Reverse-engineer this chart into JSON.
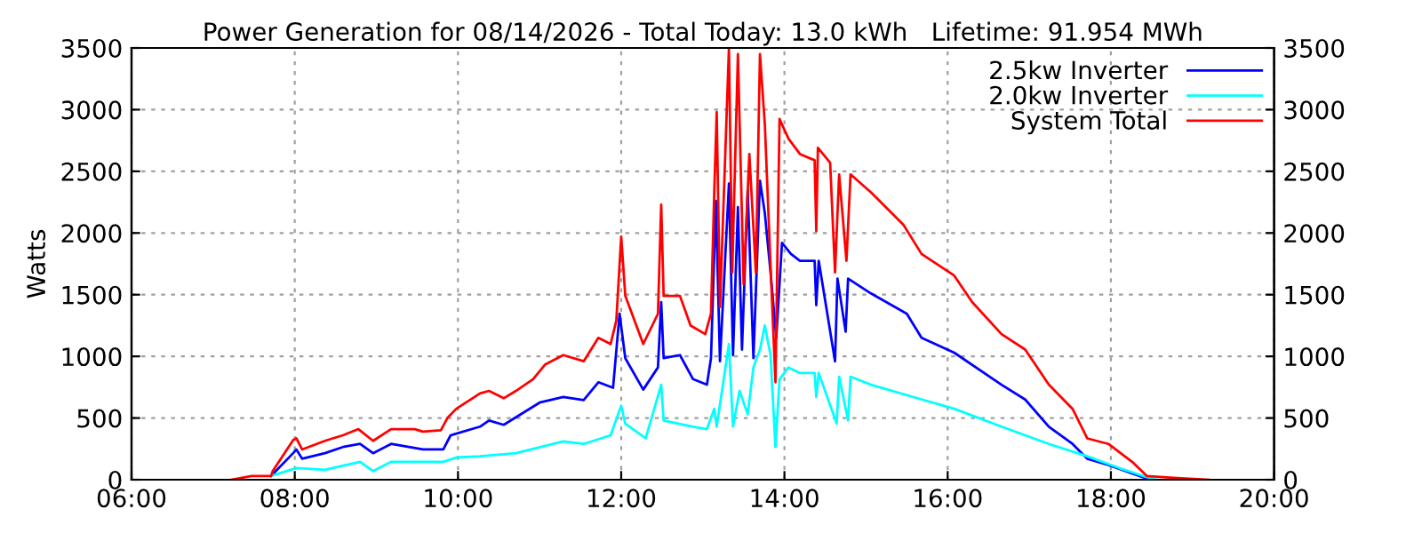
{
  "chart_data": {
    "type": "line",
    "title": "Power Generation for 08/14/2026 - Total Today: 13.0 kWh   Lifetime: 91.954 MWh",
    "ylabel": "Watts",
    "xlim": [
      6,
      20
    ],
    "xticks": [
      {
        "value": 6,
        "label": "06:00"
      },
      {
        "value": 8,
        "label": "08:00"
      },
      {
        "value": 10,
        "label": "10:00"
      },
      {
        "value": 12,
        "label": "12:00"
      },
      {
        "value": 14,
        "label": "14:00"
      },
      {
        "value": 16,
        "label": "16:00"
      },
      {
        "value": 18,
        "label": "18:00"
      },
      {
        "value": 20,
        "label": "20:00"
      }
    ],
    "ylim": [
      0,
      3500
    ],
    "yticks": [
      0,
      500,
      1000,
      1500,
      2000,
      2500,
      3000,
      3500
    ],
    "y2lim": [
      0,
      3500
    ],
    "y2ticks": [
      0,
      500,
      1000,
      1500,
      2000,
      2500,
      3000,
      3500
    ],
    "grid": true,
    "legend": "top right",
    "line_style": "solid",
    "marker": "none",
    "series": [
      {
        "name": "2.5kw Inverter",
        "color": "#0000ff",
        "x": [
          7.71,
          7.98,
          8.02,
          8.09,
          8.37,
          8.59,
          8.8,
          8.96,
          9.18,
          9.57,
          9.82,
          9.91,
          10.27,
          10.38,
          10.56,
          11.0,
          11.29,
          11.54,
          11.72,
          11.9,
          11.98,
          12.05,
          12.27,
          12.45,
          12.49,
          12.52,
          12.72,
          12.88,
          13.05,
          13.1,
          13.16,
          13.21,
          13.32,
          13.37,
          13.43,
          13.48,
          13.55,
          13.62,
          13.7,
          13.76,
          13.83,
          13.9,
          13.97,
          14.08,
          14.19,
          14.37,
          14.39,
          14.42,
          14.62,
          14.65,
          14.75,
          14.78,
          15.06,
          15.5,
          15.68,
          16.08,
          16.66,
          16.95,
          17.24,
          17.53,
          17.71,
          17.97,
          18.26,
          18.48
        ],
        "values": [
          30,
          215,
          245,
          170,
          215,
          265,
          290,
          215,
          290,
          245,
          245,
          360,
          430,
          480,
          445,
          625,
          670,
          645,
          790,
          745,
          1345,
          985,
          730,
          910,
          1440,
          985,
          1010,
          815,
          770,
          985,
          2260,
          960,
          2400,
          1010,
          2210,
          1055,
          2350,
          985,
          2425,
          2160,
          1680,
          1150,
          1920,
          1830,
          1775,
          1775,
          1415,
          1775,
          960,
          1630,
          1200,
          1630,
          1510,
          1345,
          1150,
          1030,
          770,
          650,
          430,
          290,
          170,
          120,
          50,
          0
        ]
      },
      {
        "name": "2.0kw Inverter",
        "color": "#00ffff",
        "x": [
          7.71,
          8.02,
          8.37,
          8.8,
          8.96,
          9.18,
          9.82,
          9.98,
          10.27,
          10.71,
          11.29,
          11.54,
          11.87,
          12.0,
          12.05,
          12.3,
          12.49,
          12.52,
          12.88,
          13.05,
          13.14,
          13.17,
          13.32,
          13.37,
          13.45,
          13.55,
          13.62,
          13.7,
          13.76,
          13.83,
          13.89,
          13.94,
          14.05,
          14.19,
          14.37,
          14.39,
          14.42,
          14.64,
          14.67,
          14.78,
          14.81,
          15.06,
          15.58,
          16.08,
          16.66,
          17.24,
          17.71,
          18.1,
          18.4,
          18.55
        ],
        "values": [
          30,
          95,
          80,
          145,
          70,
          145,
          145,
          180,
          190,
          215,
          310,
          290,
          360,
          600,
          455,
          335,
          770,
          480,
          430,
          410,
          575,
          430,
          1100,
          430,
          720,
          530,
          910,
          1055,
          1250,
          1010,
          265,
          815,
          910,
          865,
          865,
          670,
          865,
          455,
          835,
          480,
          835,
          770,
          670,
          575,
          430,
          290,
          190,
          95,
          30,
          0
        ]
      },
      {
        "name": "System Total",
        "color": "#ff0000",
        "x": [
          7.22,
          7.47,
          7.71,
          7.73,
          7.98,
          8.02,
          8.09,
          8.37,
          8.59,
          8.78,
          8.96,
          9.18,
          9.47,
          9.57,
          9.79,
          9.87,
          9.98,
          10.27,
          10.38,
          10.56,
          10.71,
          10.92,
          11.07,
          11.29,
          11.54,
          11.72,
          11.87,
          11.94,
          12.0,
          12.05,
          12.27,
          12.45,
          12.49,
          12.52,
          12.72,
          12.85,
          13.03,
          13.1,
          13.14,
          13.17,
          13.21,
          13.32,
          13.36,
          13.43,
          13.5,
          13.57,
          13.65,
          13.7,
          13.76,
          13.83,
          13.89,
          13.94,
          13.97,
          14.05,
          14.19,
          14.37,
          14.39,
          14.41,
          14.56,
          14.62,
          14.67,
          14.76,
          14.81,
          15.06,
          15.46,
          15.68,
          16.08,
          16.3,
          16.66,
          16.95,
          17.24,
          17.53,
          17.71,
          17.97,
          18.26,
          18.44,
          18.77,
          19.2
        ],
        "values": [
          0,
          30,
          30,
          70,
          320,
          335,
          245,
          315,
          360,
          410,
          315,
          410,
          410,
          390,
          400,
          500,
          575,
          700,
          720,
          660,
          720,
          815,
          935,
          1010,
          960,
          1150,
          1100,
          1290,
          1970,
          1490,
          1100,
          1345,
          2230,
          1490,
          1490,
          1250,
          1180,
          1345,
          2330,
          2980,
          1400,
          3500,
          1680,
          3450,
          1585,
          2640,
          1680,
          3450,
          2880,
          1730,
          790,
          2925,
          2880,
          2765,
          2640,
          2590,
          2015,
          2690,
          2570,
          1680,
          2475,
          1775,
          2475,
          2330,
          2065,
          1830,
          1655,
          1440,
          1180,
          1055,
          770,
          575,
          335,
          290,
          145,
          30,
          15,
          0
        ]
      }
    ]
  }
}
